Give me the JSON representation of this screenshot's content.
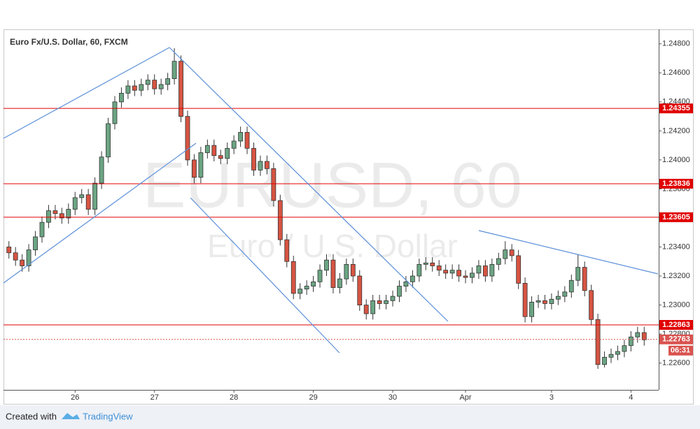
{
  "chart_data": {
    "type": "candlestick",
    "title": "Euro Fx/U.S. Dollar, 60, FXCM",
    "watermark": {
      "symbol": "EURUSD, 60",
      "description": "Euro / U.S. Dollar"
    },
    "up_color": "#6ba583",
    "down_color": "#d75442",
    "categories": [
      null,
      null,
      null,
      null,
      null,
      null,
      null,
      null,
      null,
      null,
      "26",
      null,
      null,
      null,
      null,
      null,
      null,
      null,
      null,
      null,
      null,
      null,
      "27",
      null,
      null,
      null,
      null,
      null,
      null,
      null,
      null,
      null,
      null,
      null,
      "28",
      null,
      null,
      null,
      null,
      null,
      null,
      null,
      null,
      null,
      null,
      null,
      "29",
      null,
      null,
      null,
      null,
      null,
      null,
      null,
      null,
      null,
      null,
      null,
      "30",
      null,
      null,
      null,
      null,
      null,
      null,
      null,
      null,
      null,
      null,
      "Apr",
      null,
      null,
      null,
      null,
      null,
      null,
      null,
      null,
      null,
      null,
      null,
      null,
      "3",
      null,
      null,
      null,
      null,
      null,
      null,
      null,
      null,
      null,
      null,
      null,
      "4",
      null,
      null
    ],
    "open": [
      1.234,
      1.2336,
      1.2331,
      1.2327,
      1.2338,
      1.2347,
      1.2357,
      1.2365,
      1.2363,
      1.236,
      1.2366,
      1.2374,
      1.2376,
      1.2366,
      1.2384,
      1.2402,
      1.2425,
      1.244,
      1.2446,
      1.2451,
      1.2448,
      1.2452,
      1.2455,
      1.2449,
      1.2452,
      1.2456,
      1.2468,
      1.243,
      1.24,
      1.2388,
      1.2405,
      1.241,
      1.2403,
      1.2401,
      1.2408,
      1.2413,
      1.2419,
      1.2408,
      1.2393,
      1.2399,
      1.2394,
      1.2372,
      1.2345,
      1.233,
      1.2308,
      1.2311,
      1.2313,
      1.2316,
      1.2324,
      1.2331,
      1.2312,
      1.2318,
      1.2328,
      1.232,
      1.23,
      1.2294,
      1.2303,
      1.2301,
      1.2303,
      1.2306,
      1.2313,
      1.2316,
      1.232,
      1.2328,
      1.2329,
      1.2327,
      1.2324,
      1.2322,
      1.2324,
      1.232,
      1.2319,
      1.2322,
      1.2327,
      1.232,
      1.2328,
      1.2332,
      1.2338,
      1.2334,
      1.2315,
      1.2292,
      1.2302,
      1.2303,
      1.2301,
      1.2304,
      1.2306,
      1.2309,
      1.2317,
      1.2326,
      1.231,
      1.229,
      1.2259,
      1.2264,
      1.2266,
      1.2268,
      1.2272,
      1.2278,
      1.2281
    ],
    "high": [
      1.2344,
      1.234,
      1.2335,
      1.2342,
      1.2351,
      1.2361,
      1.2369,
      1.2369,
      1.2367,
      1.237,
      1.2378,
      1.238,
      1.238,
      1.2388,
      1.2406,
      1.2429,
      1.2444,
      1.245,
      1.2455,
      1.2455,
      1.2456,
      1.2459,
      1.2459,
      1.2456,
      1.246,
      1.2477,
      1.2472,
      1.2434,
      1.2404,
      1.2409,
      1.2414,
      1.2414,
      1.2407,
      1.2412,
      1.2417,
      1.2423,
      1.2423,
      1.2412,
      1.2403,
      1.2403,
      1.2398,
      1.2376,
      1.2349,
      1.2334,
      1.2315,
      1.2317,
      1.232,
      1.2328,
      1.2335,
      1.2335,
      1.2322,
      1.2332,
      1.2332,
      1.2324,
      1.2304,
      1.2307,
      1.2307,
      1.2307,
      1.231,
      1.2317,
      1.232,
      1.2324,
      1.2332,
      1.2333,
      1.2333,
      1.2331,
      1.2328,
      1.2328,
      1.2328,
      1.2324,
      1.2326,
      1.2331,
      1.2331,
      1.2332,
      1.2336,
      1.2344,
      1.2342,
      1.2338,
      1.2319,
      1.2306,
      1.2307,
      1.2307,
      1.2308,
      1.231,
      1.2313,
      1.2321,
      1.2335,
      1.233,
      1.2314,
      1.2294,
      1.2268,
      1.227,
      1.2272,
      1.2276,
      1.2282,
      1.2285,
      1.2285
    ],
    "low": [
      1.2332,
      1.2327,
      1.2323,
      1.2323,
      1.2334,
      1.2343,
      1.2353,
      1.2359,
      1.2356,
      1.2356,
      1.2362,
      1.237,
      1.2362,
      1.2362,
      1.238,
      1.2398,
      1.2421,
      1.2436,
      1.2442,
      1.2444,
      1.2444,
      1.2448,
      1.2445,
      1.2445,
      1.2448,
      1.2452,
      1.2426,
      1.2396,
      1.2384,
      1.2384,
      1.2401,
      1.2399,
      1.2397,
      1.2397,
      1.2404,
      1.2409,
      1.2404,
      1.2389,
      1.2389,
      1.239,
      1.2368,
      1.2341,
      1.2326,
      1.2304,
      1.2304,
      1.2307,
      1.2309,
      1.2312,
      1.232,
      1.2308,
      1.2308,
      1.2314,
      1.2316,
      1.2296,
      1.229,
      1.229,
      1.2297,
      1.2297,
      1.2299,
      1.2302,
      1.2309,
      1.2312,
      1.2316,
      1.2324,
      1.2323,
      1.232,
      1.2318,
      1.2318,
      1.2316,
      1.2315,
      1.2315,
      1.2318,
      1.2316,
      1.2316,
      1.2324,
      1.2328,
      1.233,
      1.2311,
      1.2288,
      1.2288,
      1.2298,
      1.2297,
      1.2297,
      1.23,
      1.2302,
      1.2305,
      1.2313,
      1.2306,
      1.2286,
      1.2256,
      1.2257,
      1.226,
      1.2262,
      1.2264,
      1.2268,
      1.2274,
      1.2272
    ],
    "close": [
      1.2336,
      1.2331,
      1.2327,
      1.2338,
      1.2347,
      1.2357,
      1.2365,
      1.2363,
      1.236,
      1.2366,
      1.2374,
      1.2376,
      1.2366,
      1.2384,
      1.2402,
      1.2425,
      1.244,
      1.2446,
      1.2451,
      1.2448,
      1.2452,
      1.2455,
      1.2449,
      1.2452,
      1.2456,
      1.2468,
      1.243,
      1.24,
      1.2388,
      1.2405,
      1.241,
      1.2403,
      1.2401,
      1.2408,
      1.2413,
      1.2419,
      1.2408,
      1.2393,
      1.2399,
      1.2394,
      1.2372,
      1.2345,
      1.233,
      1.2308,
      1.2311,
      1.2313,
      1.2316,
      1.2324,
      1.2331,
      1.2312,
      1.2318,
      1.2328,
      1.232,
      1.23,
      1.2294,
      1.2303,
      1.2301,
      1.2303,
      1.2306,
      1.2313,
      1.2316,
      1.232,
      1.2328,
      1.2329,
      1.2327,
      1.2324,
      1.2322,
      1.2324,
      1.232,
      1.2319,
      1.2322,
      1.2327,
      1.232,
      1.2328,
      1.2332,
      1.2338,
      1.2334,
      1.2315,
      1.2292,
      1.2302,
      1.2303,
      1.2301,
      1.2304,
      1.2306,
      1.2309,
      1.2317,
      1.2326,
      1.231,
      1.229,
      1.2259,
      1.2264,
      1.2266,
      1.2268,
      1.2272,
      1.2278,
      1.2281,
      1.2276
    ],
    "ylim": [
      1.2242,
      1.249
    ],
    "yticks": [
      {
        "value": 1.226,
        "label": "1.22600"
      },
      {
        "value": 1.228,
        "label": "1.22800"
      },
      {
        "value": 1.23,
        "label": "1.23000"
      },
      {
        "value": 1.232,
        "label": "1.23200"
      },
      {
        "value": 1.234,
        "label": "1.23400"
      },
      {
        "value": 1.236,
        "label": "1.23600"
      },
      {
        "value": 1.238,
        "label": "1.23800"
      },
      {
        "value": 1.24,
        "label": "1.24000"
      },
      {
        "value": 1.242,
        "label": "1.24200"
      },
      {
        "value": 1.244,
        "label": "1.24400"
      },
      {
        "value": 1.246,
        "label": "1.24600"
      },
      {
        "value": 1.248,
        "label": "1.24800"
      }
    ],
    "grid": false,
    "levels": [
      {
        "value": 1.24355,
        "label": "1.24355"
      },
      {
        "value": 1.23836,
        "label": "1.23836"
      },
      {
        "value": 1.23605,
        "label": "1.23605"
      },
      {
        "value": 1.22863,
        "label": "1.22863"
      }
    ],
    "level_color": "#e00000",
    "last_price": {
      "value": 1.22763,
      "label": "1.22763"
    },
    "last_price_color": "#d9534f",
    "countdown": "06:31"
  },
  "footer": {
    "created_with": "Created with",
    "brand": "TradingView"
  }
}
